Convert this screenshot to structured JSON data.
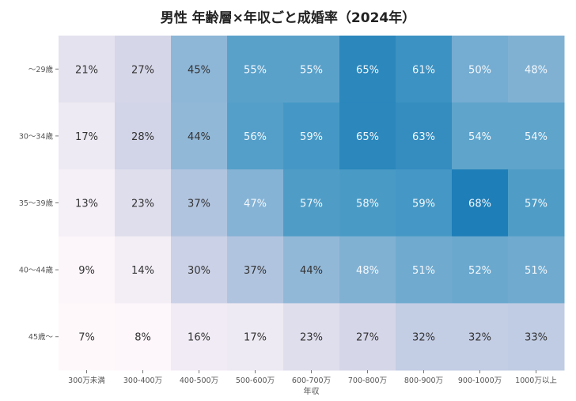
{
  "chart_data": {
    "type": "heatmap",
    "title": "男性 年齢層×年収ごと成婚率（2024年）",
    "xlabel": "年収",
    "ylabel": "",
    "x_categories": [
      "300万未満",
      "300-400万",
      "400-500万",
      "500-600万",
      "600-700万",
      "700-800万",
      "800-900万",
      "900-1000万",
      "1000万以上"
    ],
    "y_categories": [
      "～29歳",
      "30～34歳",
      "35～39歳",
      "40～44歳",
      "45歳～"
    ],
    "values": [
      [
        21,
        27,
        45,
        55,
        55,
        65,
        61,
        50,
        48
      ],
      [
        17,
        28,
        44,
        56,
        59,
        65,
        63,
        54,
        54
      ],
      [
        13,
        23,
        37,
        47,
        57,
        58,
        59,
        68,
        57
      ],
      [
        9,
        14,
        30,
        37,
        44,
        48,
        51,
        52,
        51
      ],
      [
        7,
        8,
        16,
        17,
        23,
        27,
        32,
        32,
        33
      ]
    ],
    "value_format": "%",
    "colormap": "PuBu",
    "color_range": [
      7,
      68
    ],
    "colorbar": false,
    "grid": false
  }
}
